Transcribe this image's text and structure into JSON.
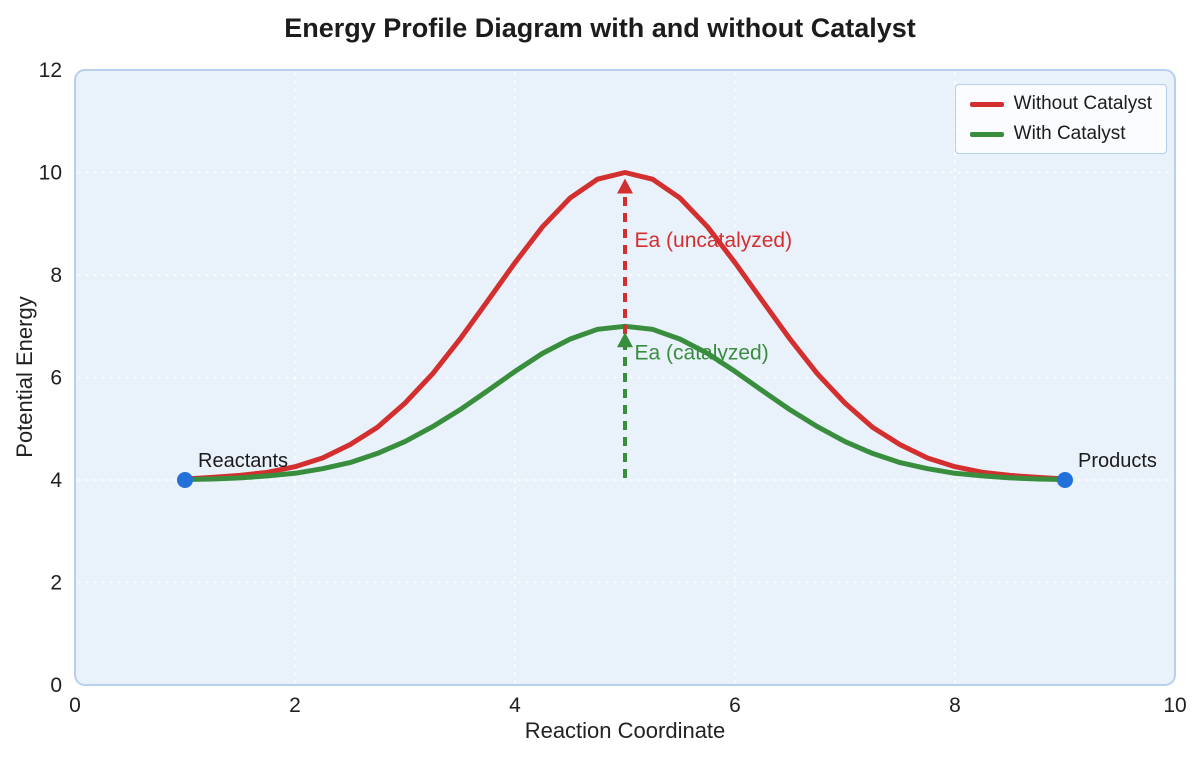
{
  "chart_data": {
    "type": "line",
    "title": "Energy Profile Diagram with and without Catalyst",
    "xlabel": "Reaction Coordinate",
    "ylabel": "Potential Energy",
    "xlim": [
      0,
      10
    ],
    "ylim": [
      0,
      12
    ],
    "xticks": [
      0,
      2,
      4,
      6,
      8,
      10
    ],
    "yticks": [
      0,
      2,
      4,
      6,
      8,
      10,
      12
    ],
    "grid": true,
    "plot_bg": "#e9f1fb",
    "plot_border": "#b9cfee",
    "grid_color": "#ffffff",
    "x": [
      1,
      1.25,
      1.5,
      1.75,
      2,
      2.25,
      2.5,
      2.75,
      3,
      3.25,
      3.5,
      3.75,
      4,
      4.25,
      4.5,
      4.75,
      5,
      5.25,
      5.5,
      5.75,
      6,
      6.25,
      6.5,
      6.75,
      7,
      7.25,
      7.5,
      7.75,
      8,
      8.25,
      8.5,
      8.75,
      9
    ],
    "series": [
      {
        "name": "Without Catalyst",
        "color": "#d32f2f",
        "peak_x": 5,
        "peak_y": 10,
        "baseline_y": 4,
        "values": [
          4.02,
          4.05,
          4.09,
          4.15,
          4.26,
          4.43,
          4.69,
          5.03,
          5.5,
          6.07,
          6.75,
          7.49,
          8.24,
          8.94,
          9.5,
          9.87,
          10,
          9.87,
          9.5,
          8.94,
          8.24,
          7.49,
          6.75,
          6.07,
          5.5,
          5.03,
          4.69,
          4.43,
          4.26,
          4.15,
          4.09,
          4.05,
          4.02
        ]
      },
      {
        "name": "With Catalyst",
        "color": "#388e3c",
        "peak_x": 5,
        "peak_y": 7,
        "baseline_y": 4,
        "values": [
          4.01,
          4.02,
          4.04,
          4.08,
          4.13,
          4.22,
          4.34,
          4.52,
          4.75,
          5.04,
          5.37,
          5.74,
          6.12,
          6.47,
          6.75,
          6.94,
          7,
          6.94,
          6.75,
          6.47,
          6.12,
          5.74,
          5.37,
          5.04,
          4.75,
          4.52,
          4.34,
          4.22,
          4.13,
          4.08,
          4.04,
          4.02,
          4.01
        ]
      }
    ],
    "points": [
      {
        "label": "Reactants",
        "x": 1,
        "y": 4,
        "color": "#2270d9"
      },
      {
        "label": "Products",
        "x": 9,
        "y": 4,
        "color": "#2270d9"
      }
    ],
    "arrows": [
      {
        "name": "activation-energy-uncatalyzed",
        "x": 5,
        "y_start": 4,
        "y_end": 10,
        "color": "#d32f2f"
      },
      {
        "name": "activation-energy-catalyzed",
        "x": 5,
        "y_start": 4,
        "y_end": 7,
        "color": "#388e3c"
      }
    ],
    "annotations": [
      {
        "text": "Ea (uncatalyzed)",
        "x": 5.05,
        "y": 8.55,
        "color": "#d32f2f"
      },
      {
        "text": "Ea (catalyzed)",
        "x": 5.05,
        "y": 6.35,
        "color": "#388e3c"
      }
    ],
    "legend": {
      "position": "top-right"
    }
  }
}
